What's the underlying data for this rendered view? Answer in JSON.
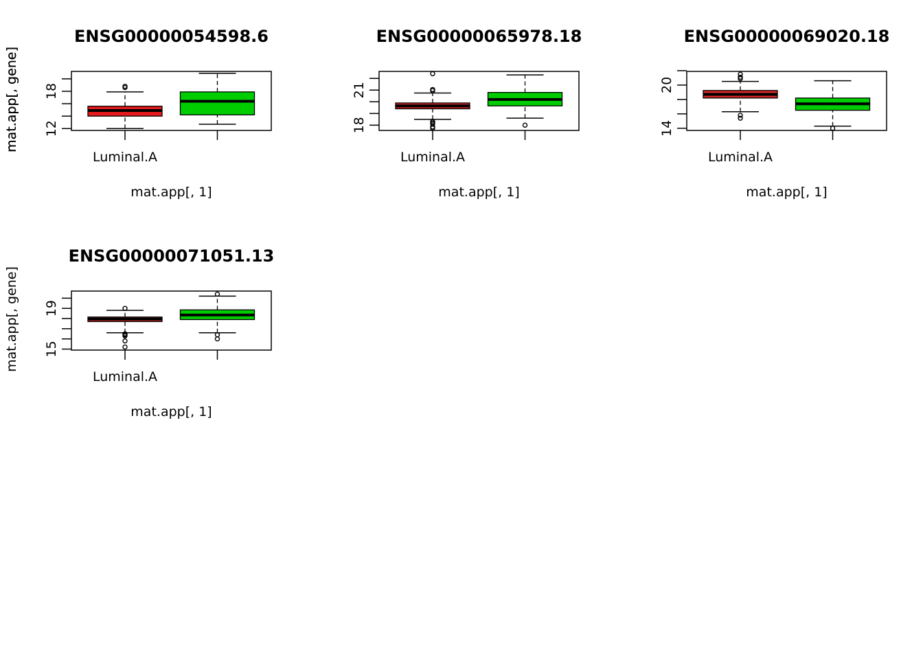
{
  "chart_data": [
    {
      "type": "box",
      "title": "ENSG00000054598.6",
      "xlabel": "mat.app[, 1]",
      "ylabel": "mat.app[, gene]",
      "categories": [
        "Luminal.A",
        ""
      ],
      "ylim": [
        11.7,
        21.2
      ],
      "yticks": [
        12,
        14,
        16,
        18,
        20
      ],
      "ytick_labels": [
        "12",
        "",
        "",
        "18",
        ""
      ],
      "boxes": [
        {
          "color": "#e41a1c",
          "whisker_low": 12.0,
          "q1": 14.0,
          "median": 14.9,
          "q3": 15.6,
          "whisker_high": 17.9,
          "outliers": [
            18.6,
            18.8
          ]
        },
        {
          "color": "#00cd00",
          "whisker_low": 12.7,
          "q1": 14.2,
          "median": 16.4,
          "q3": 17.9,
          "whisker_high": 20.9,
          "outliers": []
        }
      ]
    },
    {
      "type": "box",
      "title": "ENSG00000065978.18",
      "xlabel": "mat.app[, 1]",
      "ylabel": "mat.app[, gene]",
      "categories": [
        "Luminal.A",
        ""
      ],
      "ylim": [
        17.55,
        22.6
      ],
      "yticks": [
        18,
        19,
        20,
        21,
        22
      ],
      "ytick_labels": [
        "18",
        "",
        "",
        "21",
        ""
      ],
      "boxes": [
        {
          "color": "#d62728",
          "whisker_low": 18.5,
          "q1": 19.4,
          "median": 19.65,
          "q3": 19.9,
          "whisker_high": 20.75,
          "outliers": [
            18.3,
            18.2,
            18.1,
            17.85,
            17.75,
            20.95,
            21.05,
            22.4
          ]
        },
        {
          "color": "#00cd00",
          "whisker_low": 18.6,
          "q1": 19.65,
          "median": 20.2,
          "q3": 20.8,
          "whisker_high": 22.3,
          "outliers": [
            18.0
          ]
        }
      ]
    },
    {
      "type": "box",
      "title": "ENSG00000069020.18",
      "xlabel": "mat.app[, 1]",
      "ylabel": "mat.app[, gene]",
      "categories": [
        "Luminal.A",
        ""
      ],
      "ylim": [
        13.7,
        21.9
      ],
      "yticks": [
        14,
        16,
        18,
        20,
        22
      ],
      "ytick_labels": [
        "14",
        "",
        "",
        "20",
        ""
      ],
      "boxes": [
        {
          "color": "#d62728",
          "whisker_low": 16.3,
          "q1": 18.2,
          "median": 18.7,
          "q3": 19.25,
          "whisker_high": 20.5,
          "outliers": [
            15.8,
            15.4,
            20.9,
            21.1,
            21.5
          ]
        },
        {
          "color": "#00cd00",
          "whisker_low": 14.3,
          "q1": 16.5,
          "median": 17.4,
          "q3": 18.2,
          "whisker_high": 20.6,
          "outliers": [
            14.0
          ]
        }
      ]
    },
    {
      "type": "box",
      "title": "ENSG00000071051.13",
      "xlabel": "mat.app[, 1]",
      "ylabel": "mat.app[, gene]",
      "categories": [
        "Luminal.A",
        ""
      ],
      "ylim": [
        14.9,
        20.7
      ],
      "yticks": [
        15,
        16,
        17,
        18,
        19,
        20
      ],
      "ytick_labels": [
        "15",
        "",
        "",
        "",
        "19",
        ""
      ],
      "boxes": [
        {
          "color": "#d62728",
          "whisker_low": 16.6,
          "q1": 17.7,
          "median": 17.95,
          "q3": 18.15,
          "whisker_high": 18.8,
          "outliers": [
            19.0,
            16.5,
            16.4,
            16.3,
            15.8,
            15.2
          ]
        },
        {
          "color": "#00cd00",
          "whisker_low": 16.6,
          "q1": 17.9,
          "median": 18.35,
          "q3": 18.85,
          "whisker_high": 20.2,
          "outliers": [
            20.4,
            16.4,
            16.0
          ]
        }
      ]
    }
  ]
}
